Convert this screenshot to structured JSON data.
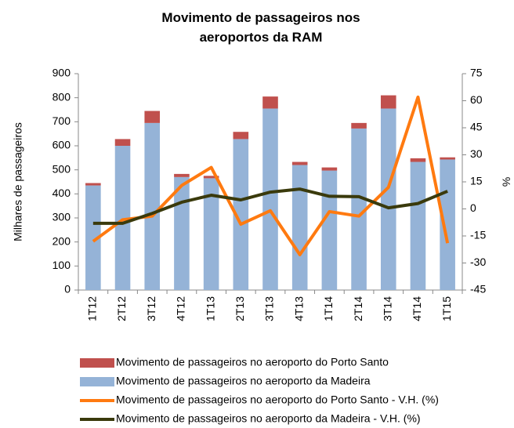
{
  "chart_data": {
    "type": "bar",
    "title": "Movimento de passageiros nos aeroportos da RAM",
    "y_label": "Milhares de passageiros",
    "y2_label": "%",
    "categories": [
      "1T12",
      "2T12",
      "3T12",
      "4T12",
      "1T13",
      "2T13",
      "3T13",
      "4T13",
      "1T14",
      "2T14",
      "3T14",
      "4T14",
      "1T15"
    ],
    "ylim": [
      0,
      900
    ],
    "yticks": [
      0,
      100,
      200,
      300,
      400,
      500,
      600,
      700,
      800,
      900
    ],
    "y2lim": [
      -45,
      75
    ],
    "y2ticks": [
      -45,
      -30,
      -15,
      0,
      15,
      30,
      45,
      60,
      75
    ],
    "series": [
      {
        "name": "Movimento de passageiros no aeroporto da Madeira",
        "type": "bar",
        "color": "#95b3d7",
        "values": [
          435,
          600,
          695,
          470,
          465,
          628,
          755,
          520,
          497,
          672,
          755,
          533,
          543
        ]
      },
      {
        "name": "Movimento de passageiros no aeroporto do Porto Santo",
        "type": "bar",
        "color": "#c0504d",
        "values": [
          10,
          28,
          50,
          13,
          10,
          30,
          50,
          13,
          13,
          23,
          55,
          15,
          9
        ]
      },
      {
        "name": "Movimento de passageiros no aeroporto do Porto Santo - V.H. (%)",
        "type": "line",
        "axis": "y2",
        "color": "#ff7a10",
        "values": [
          -18,
          -6,
          -4,
          13,
          23,
          -8.5,
          -1,
          -25.4,
          -1.5,
          -4,
          12,
          62,
          -19
        ]
      },
      {
        "name": "Movimento de passageiros no aeroporto da Madeira - V.H. (%)",
        "type": "line",
        "axis": "y2",
        "color": "#3a3a0c",
        "values": [
          -8,
          -8,
          -2.5,
          3.7,
          7.6,
          5,
          9.3,
          11,
          7,
          6.8,
          0.6,
          3,
          9.8
        ]
      }
    ],
    "legend_order": [
      1,
      0,
      2,
      3
    ]
  }
}
